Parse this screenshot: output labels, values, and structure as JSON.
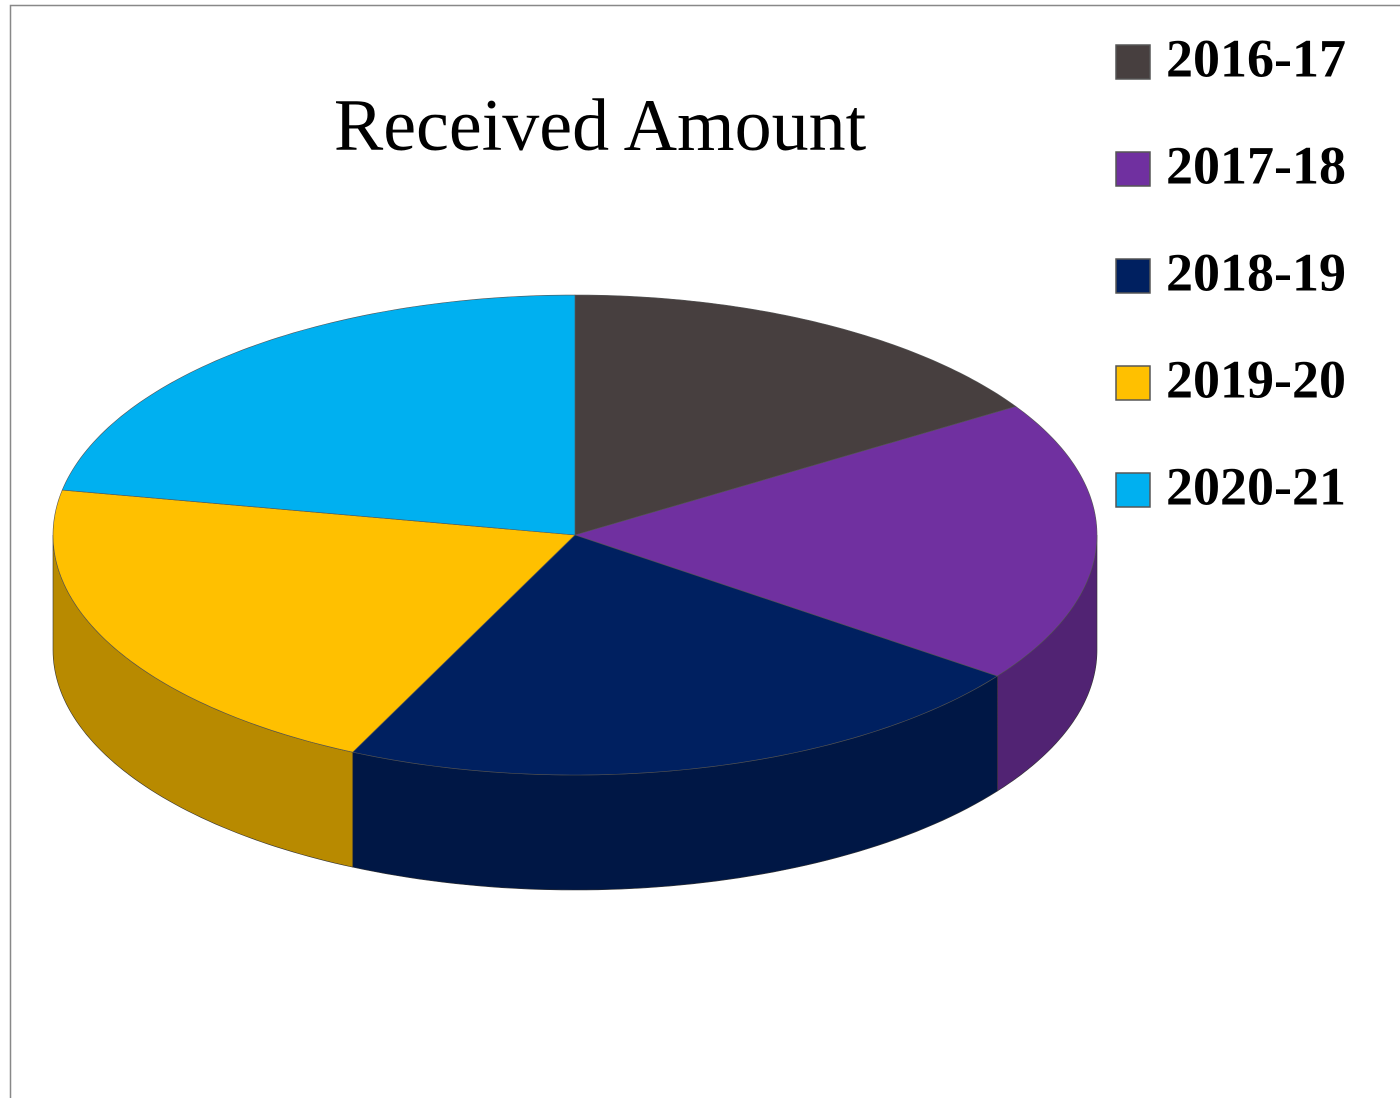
{
  "chart_data": {
    "type": "pie",
    "title": "Received Amount",
    "categories": [
      "2016-17",
      "2017-18",
      "2018-19",
      "2019-20",
      "2020-21"
    ],
    "values": [
      16,
      19,
      22,
      21,
      22
    ],
    "colors": [
      "#473f3f",
      "#7030a0",
      "#002060",
      "#ffc000",
      "#00b0f0"
    ],
    "legend": "right"
  }
}
